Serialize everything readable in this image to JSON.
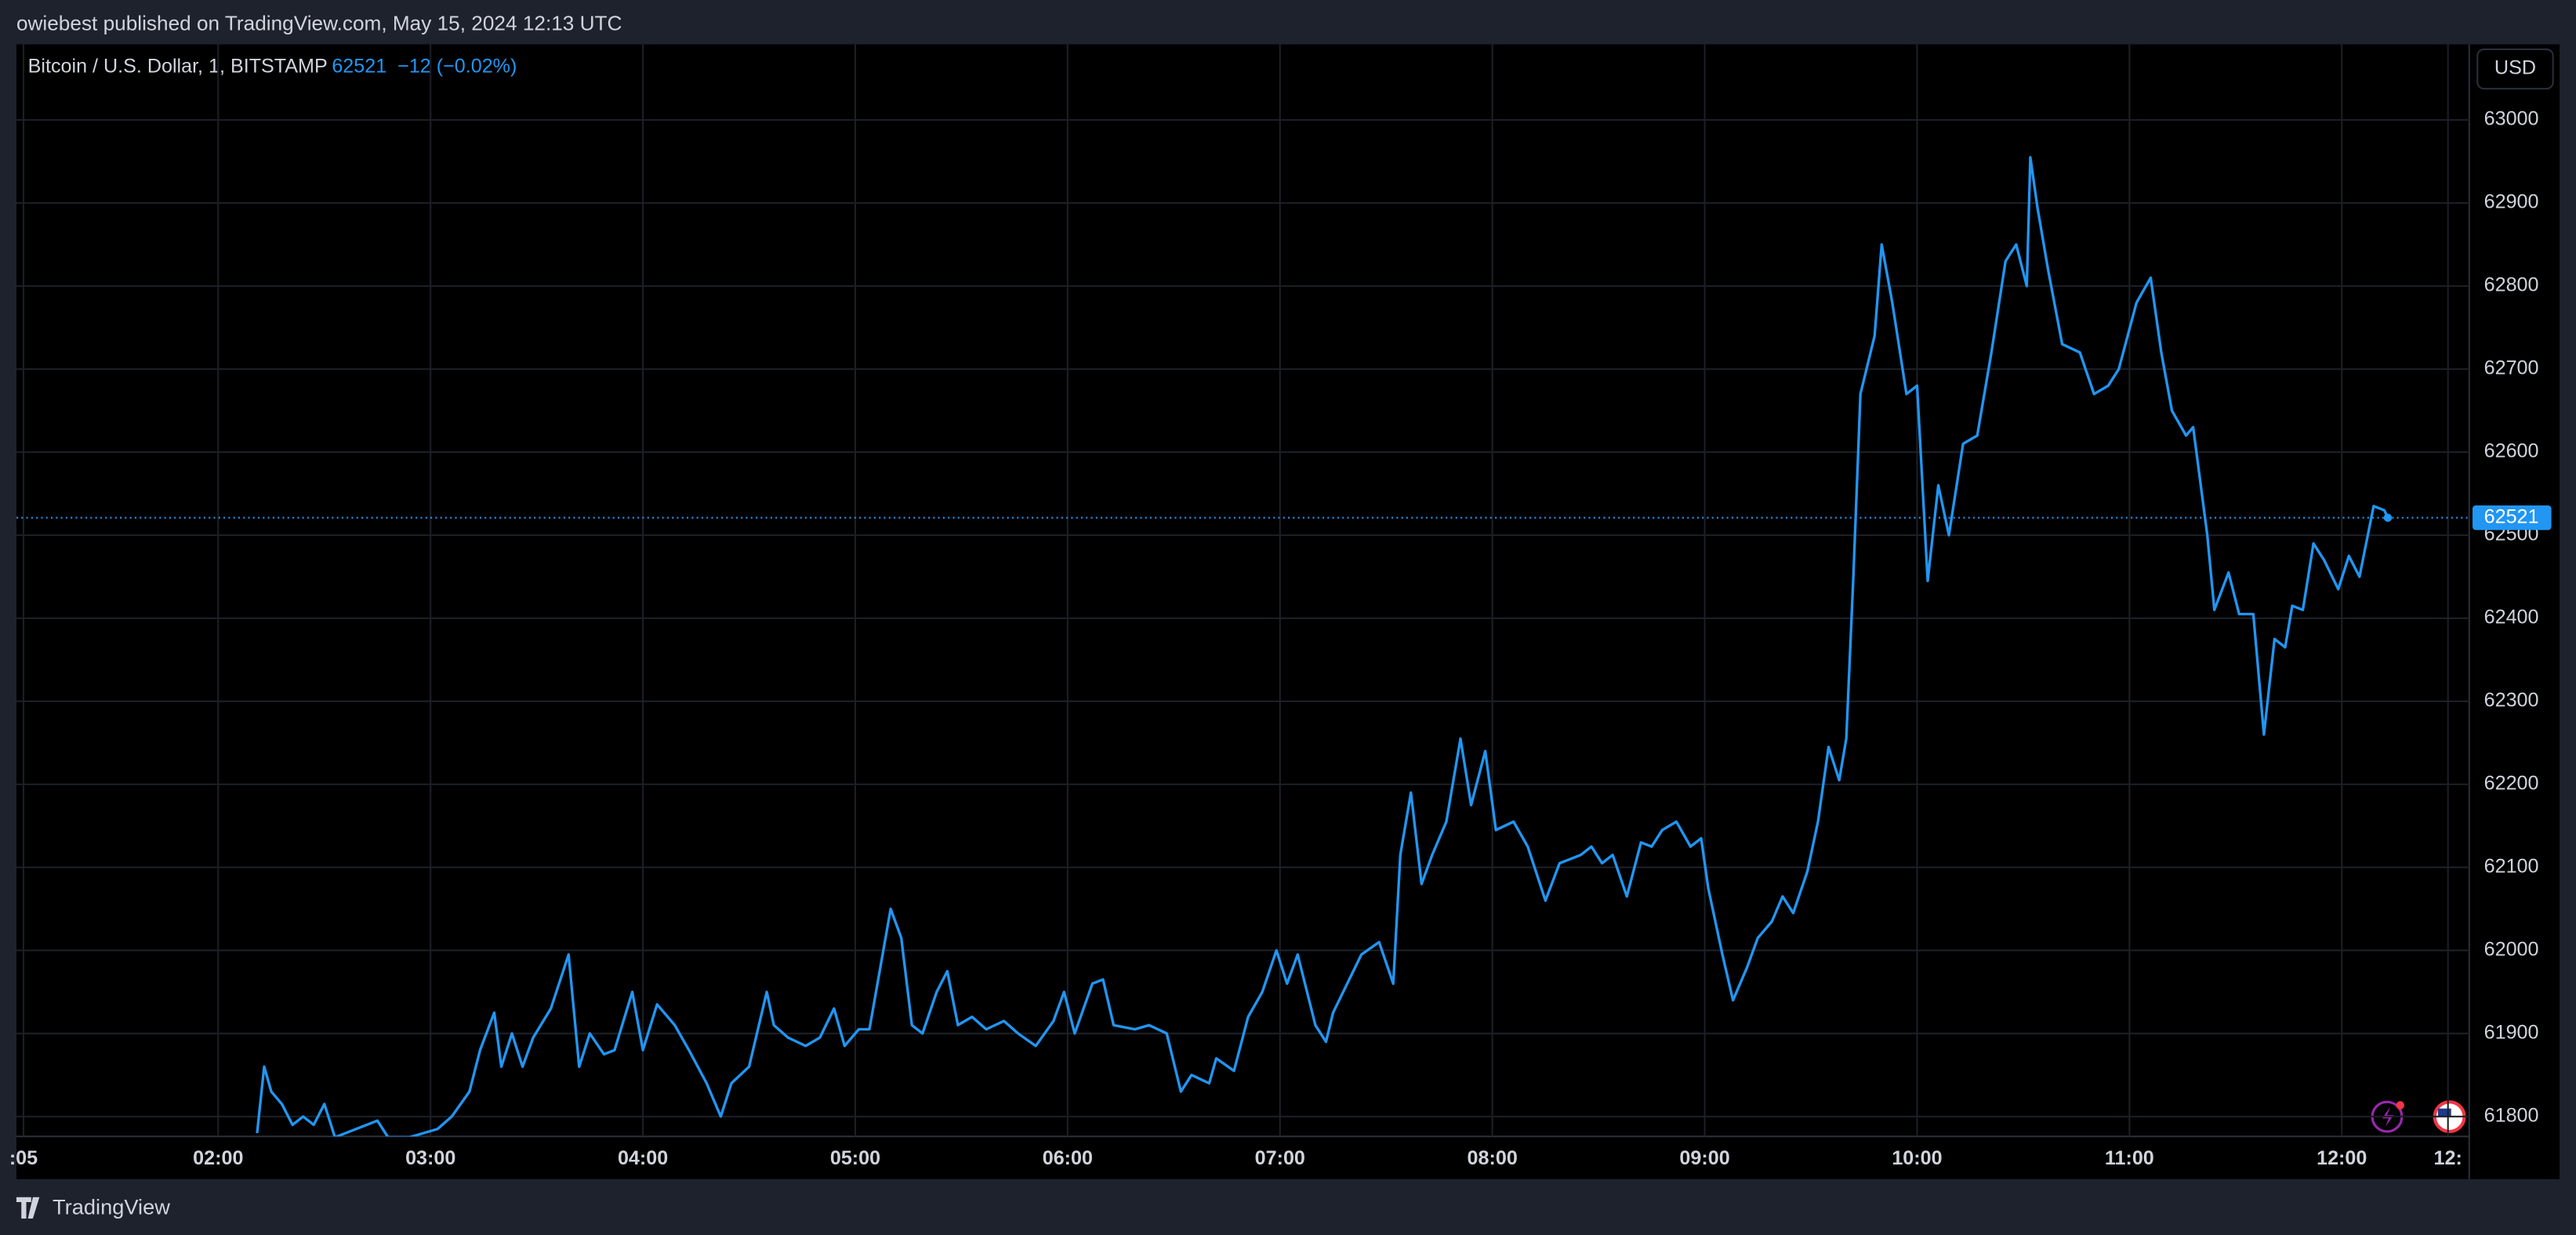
{
  "header": "owiebest published on TradingView.com, May 15, 2024 12:13 UTC",
  "footer": "TradingView",
  "chart_data": {
    "type": "line",
    "title": "Bitcoin / U.S. Dollar, 1, BITSTAMP",
    "last_price": 62521,
    "last_change": "−12 (−0.02%)",
    "currency": "USD",
    "color": "#2196f3",
    "grid": true,
    "xlim": [
      63,
      756
    ],
    "ylim": [
      61776,
      63091
    ],
    "xticks": [
      {
        "value": 65,
        "label": ":05"
      },
      {
        "value": 120,
        "label": "02:00"
      },
      {
        "value": 180,
        "label": "03:00"
      },
      {
        "value": 240,
        "label": "04:00"
      },
      {
        "value": 300,
        "label": "05:00"
      },
      {
        "value": 360,
        "label": "06:00"
      },
      {
        "value": 420,
        "label": "07:00"
      },
      {
        "value": 480,
        "label": "08:00"
      },
      {
        "value": 540,
        "label": "09:00"
      },
      {
        "value": 600,
        "label": "10:00"
      },
      {
        "value": 660,
        "label": "11:00"
      },
      {
        "value": 720,
        "label": "12:00"
      },
      {
        "value": 750,
        "label": "12:"
      }
    ],
    "yticks": [
      61800,
      61900,
      62000,
      62100,
      62200,
      62300,
      62400,
      62500,
      62600,
      62700,
      62800,
      62900,
      63000
    ],
    "x": [
      131,
      133,
      135,
      138,
      141,
      144,
      147,
      150,
      153,
      165,
      168,
      174,
      182,
      186,
      191,
      194,
      198,
      200,
      203,
      206,
      209,
      214,
      219,
      222,
      225,
      229,
      232,
      237,
      240,
      244,
      249,
      253,
      258,
      262,
      265,
      270,
      275,
      277,
      281,
      286,
      290,
      294,
      297,
      301,
      304,
      310,
      313,
      316,
      319,
      323,
      326,
      329,
      333,
      337,
      342,
      346,
      351,
      356,
      359,
      362,
      367,
      370,
      373,
      379,
      383,
      388,
      392,
      395,
      400,
      402,
      407,
      411,
      415,
      419,
      422,
      425,
      430,
      433,
      435,
      439,
      443,
      448,
      452,
      454,
      457,
      460,
      463,
      467,
      471,
      474,
      478,
      481,
      486,
      490,
      495,
      499,
      502,
      505,
      508,
      511,
      514,
      518,
      522,
      525,
      528,
      532,
      536,
      539,
      541,
      545,
      548,
      552,
      555,
      559,
      562,
      565,
      569,
      572,
      575,
      578,
      580,
      582,
      584,
      588,
      590,
      593,
      597,
      600,
      603,
      606,
      609,
      613,
      617,
      621,
      625,
      628,
      631,
      632,
      634,
      637,
      641,
      646,
      650,
      654,
      657,
      662,
      666,
      669,
      672,
      676,
      678,
      682,
      684,
      688,
      691,
      695,
      698,
      701,
      704,
      706,
      709,
      712,
      715,
      719,
      722,
      725,
      729,
      732,
      733
    ],
    "values": [
      61780,
      61860,
      61830,
      61815,
      61790,
      61800,
      61790,
      61815,
      61775,
      61795,
      61775,
      61775,
      61785,
      61800,
      61830,
      61880,
      61925,
      61860,
      61900,
      61860,
      61895,
      61930,
      61995,
      61860,
      61900,
      61875,
      61880,
      61950,
      61880,
      61935,
      61910,
      61880,
      61840,
      61800,
      61840,
      61860,
      61950,
      61910,
      61895,
      61885,
      61895,
      61930,
      61885,
      61905,
      61905,
      62050,
      62015,
      61910,
      61900,
      61950,
      61975,
      61910,
      61920,
      61905,
      61915,
      61900,
      61885,
      61915,
      61950,
      61900,
      61960,
      61965,
      61910,
      61905,
      61910,
      61900,
      61830,
      61850,
      61840,
      61870,
      61855,
      61920,
      61950,
      62000,
      61960,
      61995,
      61910,
      61890,
      61925,
      61960,
      61995,
      62010,
      61960,
      62115,
      62190,
      62080,
      62115,
      62155,
      62255,
      62175,
      62240,
      62145,
      62155,
      62125,
      62060,
      62105,
      62110,
      62115,
      62125,
      62105,
      62115,
      62065,
      62130,
      62125,
      62145,
      62155,
      62125,
      62135,
      62075,
      61995,
      61940,
      61980,
      62015,
      62035,
      62065,
      62045,
      62095,
      62155,
      62245,
      62205,
      62255,
      62450,
      62670,
      62740,
      62850,
      62780,
      62670,
      62680,
      62445,
      62560,
      62500,
      62610,
      62620,
      62720,
      62830,
      62850,
      62800,
      62955,
      62895,
      62820,
      62730,
      62720,
      62670,
      62680,
      62700,
      62780,
      62810,
      62720,
      62650,
      62620,
      62630,
      62500,
      62410,
      62455,
      62405,
      62405,
      62260,
      62375,
      62365,
      62415,
      62410,
      62490,
      62470,
      62435,
      62475,
      62450,
      62535,
      62530,
      62521
    ]
  }
}
